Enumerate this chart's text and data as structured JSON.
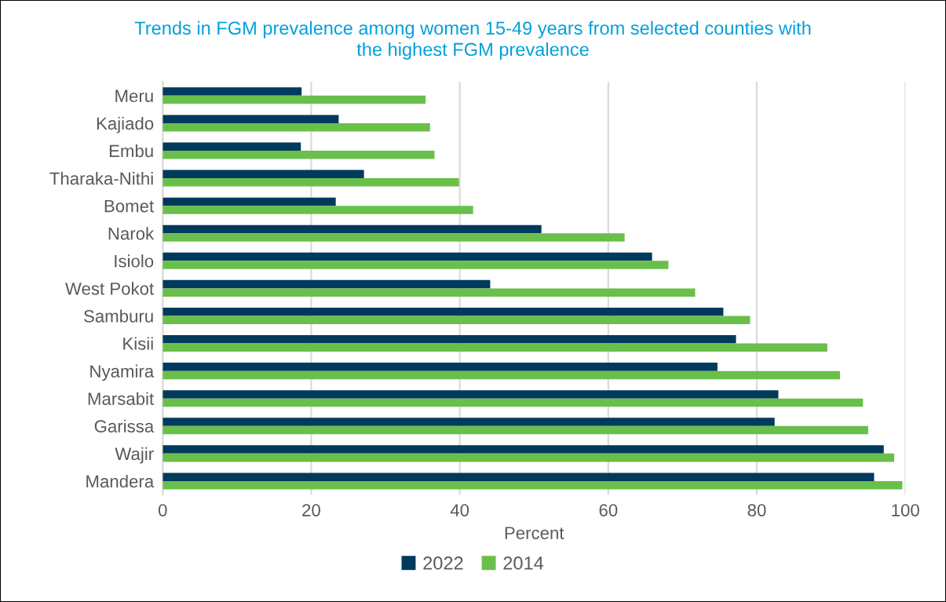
{
  "chart_data": {
    "type": "bar",
    "orientation": "horizontal",
    "title": "Trends in FGM prevalence among women 15-49 years from selected counties with\nthe highest FGM prevalence",
    "xlabel": "Percent",
    "categories": [
      "Meru",
      "Kajiado",
      "Embu",
      "Tharaka-Nithi",
      "Bomet",
      "Narok",
      "Isiolo",
      "West Pokot",
      "Samburu",
      "Kisii",
      "Nyamira",
      "Marsabit",
      "Garissa",
      "Wajir",
      "Mandera"
    ],
    "series": [
      {
        "name": "2022",
        "color": "#003a5c",
        "values": [
          18.7,
          23.7,
          18.6,
          27.1,
          23.3,
          51.0,
          65.9,
          44.1,
          75.5,
          77.2,
          74.7,
          82.9,
          82.4,
          97.1,
          95.8
        ]
      },
      {
        "name": "2014",
        "color": "#6abf4b",
        "values": [
          35.4,
          36.0,
          36.6,
          39.9,
          41.8,
          62.2,
          68.1,
          71.7,
          79.1,
          89.5,
          91.2,
          94.3,
          95.0,
          98.5,
          99.6
        ]
      }
    ],
    "xlim": [
      0,
      100
    ],
    "xticks": [
      0,
      20,
      40,
      60,
      80,
      100
    ],
    "grid": "x",
    "legend": "bottom"
  }
}
